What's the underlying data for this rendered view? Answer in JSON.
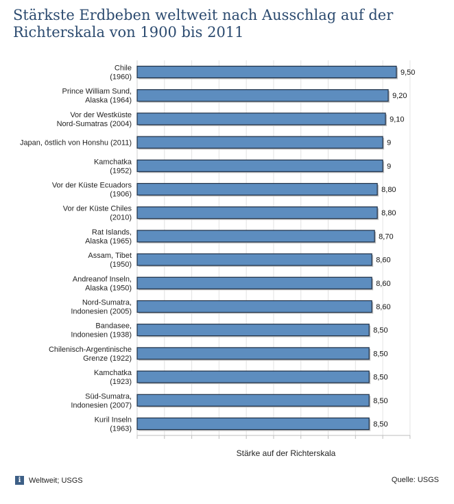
{
  "title": "Stärkste Erdbeben weltweit nach Ausschlag auf der Richterskala von 1900 bis 2011",
  "footer": {
    "info_text": "Weltweit; USGS",
    "source": "Quelle: USGS"
  },
  "chart_data": {
    "type": "bar",
    "orientation": "horizontal",
    "title": "Stärkste Erdbeben weltweit nach Ausschlag auf der Richterskala von 1900 bis 2011",
    "xlabel": "Stärke auf der Richterskala",
    "xlim": [
      0,
      10
    ],
    "grid": true,
    "bar_color": "#5d8dbf",
    "categories": [
      [
        "Chile",
        "(1960)"
      ],
      [
        "Prince William Sund,",
        "Alaska (1964)"
      ],
      [
        "Vor der Westküste",
        "Nord-Sumatras (2004)"
      ],
      [
        "Japan, östlich von Honshu (2011)"
      ],
      [
        "Kamchatka",
        "(1952)"
      ],
      [
        "Vor der Küste Ecuadors",
        "(1906)"
      ],
      [
        "Vor der Küste Chiles",
        "(2010)"
      ],
      [
        "Rat Islands,",
        "Alaska (1965)"
      ],
      [
        "Assam, Tibet",
        "(1950)"
      ],
      [
        "Andreanof Inseln,",
        "Alaska (1950)"
      ],
      [
        "Nord-Sumatra,",
        "Indonesien (2005)"
      ],
      [
        "Bandasee,",
        "Indonesien (1938)"
      ],
      [
        "Chilenisch-Argentinische",
        "Grenze (1922)"
      ],
      [
        "Kamchatka",
        "(1923)"
      ],
      [
        "Süd-Sumatra,",
        "Indonesien (2007)"
      ],
      [
        "Kuril Inseln",
        "(1963)"
      ]
    ],
    "values": [
      9.5,
      9.2,
      9.1,
      9,
      9,
      8.8,
      8.8,
      8.7,
      8.6,
      8.6,
      8.6,
      8.5,
      8.5,
      8.5,
      8.5,
      8.5
    ],
    "value_labels": [
      "9,50",
      "9,20",
      "9,10",
      "9",
      "9",
      "8,80",
      "8,80",
      "8,70",
      "8,60",
      "8,60",
      "8,60",
      "8,50",
      "8,50",
      "8,50",
      "8,50",
      "8,50"
    ]
  }
}
